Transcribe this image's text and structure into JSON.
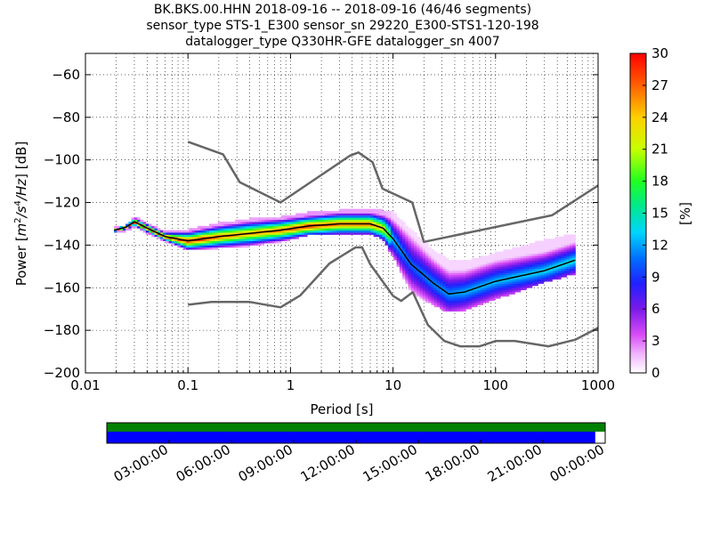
{
  "title_lines": [
    "BK.BKS.00.HHN   2018-09-16 -- 2018-09-16  (46/46 segments)",
    "sensor_type STS-1_E300 sensor_sn 29220_E300-STS1-120-198",
    "datalogger_type Q330HR-GFE datalogger_sn 4007"
  ],
  "chart_data": {
    "type": "heatmap",
    "x_scale": "log",
    "xlim": [
      0.01,
      1000
    ],
    "ylim": [
      -200,
      -50
    ],
    "xlabel": "Period [s]",
    "ylabel": "Power [m²/s⁴/Hz] [dB]",
    "ylabel_parts": {
      "prefix": "Power [",
      "base": "m",
      "exp1": "2",
      "mid": "/s",
      "exp2": "4",
      "tail": "/Hz",
      "suffix": "] [dB]"
    },
    "x_ticks": [
      0.01,
      0.1,
      1,
      10,
      100,
      1000
    ],
    "x_tick_labels": [
      "0.01",
      "0.1",
      "1",
      "10",
      "100",
      "1000"
    ],
    "y_ticks": [
      -60,
      -80,
      -100,
      -120,
      -140,
      -160,
      -180,
      -200
    ],
    "y_tick_labels": [
      "−60",
      "−80",
      "−100",
      "−120",
      "−140",
      "−160",
      "−180",
      "−200"
    ],
    "grid": true,
    "colorbar": {
      "label": "[%]",
      "range": [
        0,
        30
      ],
      "ticks": [
        0,
        3,
        6,
        9,
        12,
        15,
        18,
        21,
        24,
        27,
        30
      ],
      "tick_labels": [
        "0",
        "3",
        "6",
        "9",
        "12",
        "15",
        "18",
        "21",
        "24",
        "27",
        "30"
      ],
      "colormap": "pqlx"
    },
    "nhnm": {
      "name": "NHNM",
      "color": "#666666",
      "period": [
        0.1,
        0.22,
        0.32,
        0.8,
        3.8,
        4.6,
        6.3,
        7.9,
        15.4,
        20,
        354.8,
        1000
      ],
      "db": [
        -91.5,
        -97.4,
        -110.5,
        -120,
        -98,
        -96.5,
        -101,
        -113.5,
        -120,
        -138.5,
        -126,
        -112
      ]
    },
    "nlnm": {
      "name": "NLNM",
      "color": "#666666",
      "period": [
        0.1,
        0.17,
        0.4,
        0.8,
        1.24,
        2.4,
        4.3,
        5,
        6,
        10,
        12,
        15.6,
        21.9,
        31.6,
        45,
        70,
        101,
        154,
        328,
        600,
        1000
      ],
      "db": [
        -168,
        -166.7,
        -166.7,
        -169.2,
        -163.7,
        -148.6,
        -141.1,
        -141.1,
        -149,
        -163.8,
        -166.2,
        -162.1,
        -177.5,
        -185,
        -187.5,
        -187.5,
        -185,
        -185,
        -187.5,
        -184.4,
        -178.8
      ]
    },
    "mean_psd": {
      "name": "mean",
      "color": "#000000",
      "period": [
        0.019,
        0.025,
        0.03,
        0.04,
        0.06,
        0.1,
        0.2,
        0.4,
        0.8,
        1.5,
        3,
        6,
        8,
        10,
        15,
        25,
        35,
        50,
        100,
        300,
        600
      ],
      "db": [
        -133,
        -131.5,
        -129,
        -132,
        -136,
        -138,
        -136,
        -134.5,
        -133,
        -131,
        -130,
        -130,
        -132,
        -137,
        -149,
        -158,
        -163,
        -162,
        -157,
        -152,
        -147
      ]
    },
    "psd_envelope": {
      "period": [
        0.019,
        0.025,
        0.03,
        0.04,
        0.06,
        0.1,
        0.2,
        0.4,
        0.8,
        1.5,
        3,
        6,
        8,
        10,
        15,
        25,
        35,
        50,
        100,
        300,
        600
      ],
      "db_top": [
        -132,
        -131,
        -127,
        -130,
        -134,
        -133,
        -130,
        -128,
        -127,
        -125,
        -124,
        -123,
        -124,
        -125,
        -133,
        -143,
        -147,
        -148,
        -144,
        -138,
        -135
      ],
      "db_bottom": [
        -134,
        -133,
        -131,
        -134,
        -138,
        -142,
        -141,
        -140,
        -138,
        -135,
        -135,
        -134,
        -137,
        -145,
        -162,
        -168,
        -171,
        -170,
        -165,
        -157,
        -153
      ]
    },
    "time_axis": {
      "tick_labels": [
        "03:00:00",
        "06:00:00",
        "09:00:00",
        "12:00:00",
        "15:00:00",
        "18:00:00",
        "21:00:00",
        "00:00:00"
      ],
      "data_coverage_color": "#008000",
      "psd_coverage_color": "#0000ff",
      "data_coverage_fraction": 1.0,
      "psd_coverage_fraction": 0.98
    }
  }
}
